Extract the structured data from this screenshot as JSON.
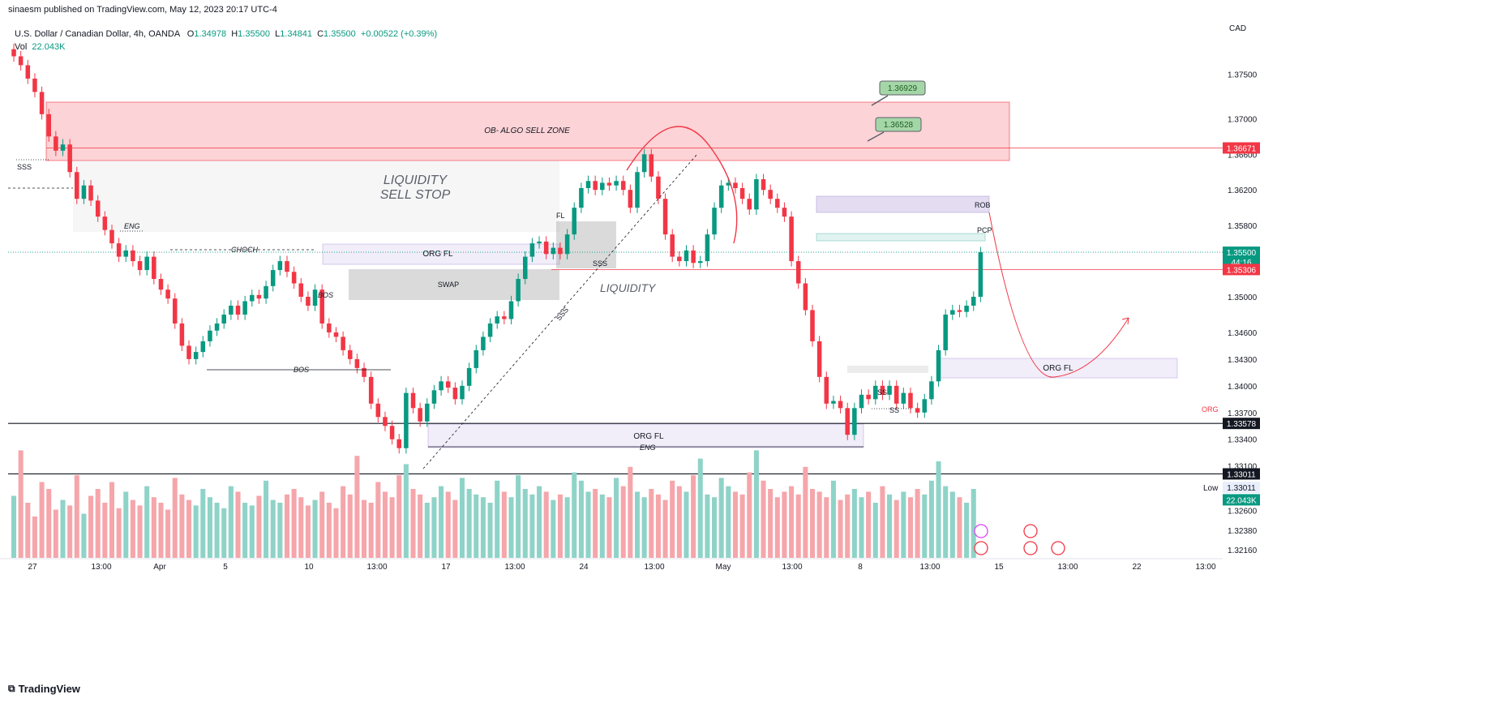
{
  "header": {
    "published": "sinaesm published on TradingView.com, May 12, 2023 20:17 UTC-4",
    "symbol": "U.S. Dollar / Canadian Dollar, 4h, OANDA",
    "o_label": "O",
    "o": "1.34978",
    "h_label": "H",
    "h": "1.35500",
    "l_label": "L",
    "l": "1.34841",
    "c_label": "C",
    "c": "1.35500",
    "chg": "+0.00522 (+0.39%)",
    "vol_label": "Vol",
    "vol": "22.043K"
  },
  "footer": {
    "brand": "TradingView"
  },
  "colors": {
    "up": "#089981",
    "down": "#f23645",
    "vol_up": "#8fd3c8",
    "vol_down": "#f5a6ab"
  },
  "chart_data": {
    "type": "candlestick",
    "currency": "CAD",
    "ylim": [
      1.3205,
      1.3795
    ],
    "y_ticks": [
      "1.37500",
      "1.37000",
      "1.36600",
      "1.36200",
      "1.35800",
      "1.35000",
      "1.34600",
      "1.34300",
      "1.34000",
      "1.33700",
      "1.33400",
      "1.33100",
      "1.32600",
      "1.32380",
      "1.32160"
    ],
    "x_ticks": [
      "27",
      "13:00",
      "Apr",
      "5",
      "10",
      "13:00",
      "17",
      "13:00",
      "24",
      "13:00",
      "May",
      "13:00",
      "8",
      "13:00",
      "15",
      "13:00",
      "22",
      "13:00"
    ],
    "close_path": [
      1.377,
      1.376,
      1.3745,
      1.373,
      1.3705,
      1.368,
      1.3664,
      1.3671,
      1.364,
      1.361,
      1.3625,
      1.3608,
      1.359,
      1.3575,
      1.356,
      1.3545,
      1.3552,
      1.354,
      1.353,
      1.3545,
      1.352,
      1.3508,
      1.3498,
      1.347,
      1.3445,
      1.343,
      1.3438,
      1.345,
      1.3462,
      1.347,
      1.348,
      1.349,
      1.348,
      1.3495,
      1.3502,
      1.3498,
      1.3512,
      1.353,
      1.354,
      1.3528,
      1.3515,
      1.35,
      1.349,
      1.3508,
      1.347,
      1.346,
      1.3455,
      1.344,
      1.343,
      1.342,
      1.341,
      1.338,
      1.3365,
      1.3355,
      1.334,
      1.333,
      1.3392,
      1.3375,
      1.336,
      1.338,
      1.3395,
      1.3405,
      1.3398,
      1.3385,
      1.34,
      1.342,
      1.344,
      1.3455,
      1.347,
      1.3478,
      1.3475,
      1.3495,
      1.352,
      1.3545,
      1.356,
      1.3562,
      1.3548,
      1.3555,
      1.3548,
      1.357,
      1.36,
      1.3622,
      1.363,
      1.362,
      1.3628,
      1.3625,
      1.363,
      1.362,
      1.36,
      1.364,
      1.366,
      1.3635,
      1.361,
      1.357,
      1.3545,
      1.354,
      1.3552,
      1.3538,
      1.354,
      1.357,
      1.36,
      1.3625,
      1.3628,
      1.3622,
      1.361,
      1.3598,
      1.3632,
      1.362,
      1.361,
      1.36,
      1.359,
      1.354,
      1.3515,
      1.3485,
      1.345,
      1.341,
      1.338,
      1.3383,
      1.3375,
      1.3345,
      1.3375,
      1.339,
      1.3385,
      1.34,
      1.339,
      1.34,
      1.338,
      1.3392,
      1.3375,
      1.337,
      1.3385,
      1.3405,
      1.344,
      1.348,
      1.3485,
      1.3483,
      1.349,
      1.35,
      1.355
    ],
    "volume_path": [
      0.45,
      0.78,
      0.4,
      0.3,
      0.55,
      0.5,
      0.35,
      0.42,
      0.38,
      0.6,
      0.32,
      0.45,
      0.5,
      0.4,
      0.55,
      0.36,
      0.48,
      0.42,
      0.38,
      0.52,
      0.44,
      0.4,
      0.35,
      0.58,
      0.46,
      0.42,
      0.38,
      0.5,
      0.44,
      0.4,
      0.36,
      0.52,
      0.48,
      0.4,
      0.38,
      0.45,
      0.56,
      0.42,
      0.4,
      0.46,
      0.5,
      0.44,
      0.38,
      0.42,
      0.48,
      0.4,
      0.36,
      0.52,
      0.46,
      0.74,
      0.42,
      0.4,
      0.55,
      0.48,
      0.44,
      0.6,
      0.68,
      0.5,
      0.46,
      0.4,
      0.44,
      0.52,
      0.48,
      0.42,
      0.58,
      0.5,
      0.46,
      0.44,
      0.4,
      0.56,
      0.48,
      0.44,
      0.6,
      0.5,
      0.46,
      0.52,
      0.48,
      0.42,
      0.46,
      0.44,
      0.62,
      0.56,
      0.48,
      0.5,
      0.46,
      0.44,
      0.58,
      0.52,
      0.66,
      0.48,
      0.44,
      0.5,
      0.46,
      0.42,
      0.56,
      0.52,
      0.48,
      0.6,
      0.72,
      0.46,
      0.44,
      0.58,
      0.52,
      0.48,
      0.46,
      0.62,
      0.78,
      0.56,
      0.5,
      0.44,
      0.48,
      0.52,
      0.46,
      0.66,
      0.5,
      0.48,
      0.44,
      0.56,
      0.42,
      0.46,
      0.5,
      0.44,
      0.48,
      0.4,
      0.52,
      0.46,
      0.42,
      0.48,
      0.44,
      0.5,
      0.46,
      0.56,
      0.7,
      0.52,
      0.48,
      0.44,
      0.4,
      0.5
    ],
    "price_tags": [
      {
        "value": "1.36671",
        "price": 1.36671,
        "bg": "#f23645"
      },
      {
        "value": "1.35500",
        "price": 1.355,
        "bg": "#089981"
      },
      {
        "value": "44:16",
        "price": 1.3539,
        "bg": "#089981"
      },
      {
        "value": "1.35306",
        "price": 1.35306,
        "bg": "#f23645"
      },
      {
        "value": "1.33578",
        "price": 1.33578,
        "bg": "#131722"
      },
      {
        "value": "1.33011",
        "price": 1.33011,
        "bg": "#131722"
      },
      {
        "value": "1.33011",
        "price": 1.3286,
        "bg": "#e8eefc",
        "fg": "#131722"
      },
      {
        "value": "22.043K",
        "price": 1.3272,
        "bg": "#089981"
      }
    ],
    "low_label": "Low",
    "callouts": [
      {
        "value": "1.36929",
        "price": 1.36929
      },
      {
        "value": "1.36528",
        "price": 1.36528
      }
    ],
    "zones": [
      {
        "label": "OB- ALGO SELL ZONE"
      },
      {
        "label": "LIQUIDITY"
      },
      {
        "label": "SELL STOP"
      },
      {
        "label": "ORG FL"
      },
      {
        "label": "SWAP"
      },
      {
        "label": "FL"
      },
      {
        "label": "ORG FL"
      },
      {
        "label": "ROB"
      },
      {
        "label": "PCP"
      },
      {
        "label": "ORG FL"
      }
    ],
    "annotations": [
      {
        "text": "SSS"
      },
      {
        "text": "ENG"
      },
      {
        "text": "CHOCH"
      },
      {
        "text": "BOS"
      },
      {
        "text": "BOS"
      },
      {
        "text": "SSS"
      },
      {
        "text": "SSS"
      },
      {
        "text": "LIQUIDITY"
      },
      {
        "text": "ENG"
      },
      {
        "text": "SS"
      },
      {
        "text": "SS"
      },
      {
        "text": "ORG"
      }
    ]
  }
}
